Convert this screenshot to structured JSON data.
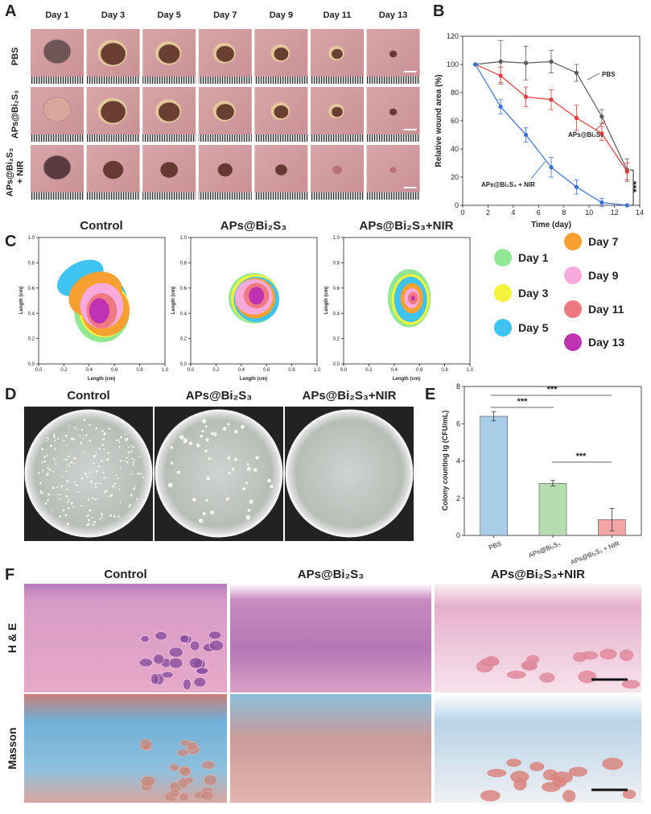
{
  "panel_labels": [
    "A",
    "B",
    "C",
    "D",
    "E",
    "F"
  ],
  "panel_a": {
    "days": [
      "Day 1",
      "Day 3",
      "Day 5",
      "Day 7",
      "Day 9",
      "Day 11",
      "Day 13"
    ],
    "rows": [
      [
        "PBS"
      ],
      [
        "APs@Bi₂S₃"
      ],
      [
        "APs@Bi₂S₃",
        "+ NIR"
      ]
    ]
  },
  "chart_data": [
    {
      "type": "line",
      "x": [
        1,
        3,
        5,
        7,
        9,
        11,
        13
      ],
      "xlabel": "Time (day)",
      "ylabel": "Relative wound area (%)",
      "xlim": [
        0,
        14
      ],
      "xticks": [
        0,
        2,
        4,
        6,
        8,
        10,
        12,
        14
      ],
      "ylim": [
        0,
        120
      ],
      "yticks": [
        0,
        20,
        40,
        60,
        80,
        100,
        120
      ],
      "series": [
        {
          "name": "PBS",
          "color": "#5a5a5a",
          "values": [
            100,
            102,
            101,
            102,
            94,
            63,
            25
          ],
          "errors": [
            0,
            15,
            12,
            8,
            6,
            5,
            8
          ]
        },
        {
          "name": "APs@Bi₂S₃",
          "color": "#e23c3c",
          "values": [
            100,
            92,
            77,
            75,
            62,
            51,
            24
          ],
          "errors": [
            0,
            6,
            7,
            7,
            9,
            5,
            6
          ]
        },
        {
          "name": "APs@Bi₂S₃ + NIR",
          "color": "#3b6fd6",
          "values": [
            100,
            70,
            50,
            27,
            13,
            2,
            0
          ],
          "errors": [
            0,
            5,
            5,
            7,
            5,
            3,
            0
          ]
        }
      ],
      "annotations": [
        "***"
      ]
    },
    {
      "type": "bar",
      "categories": [
        "PBS",
        "APs@Bi₂S₃",
        "APs@Bi₂S₃ + NIR"
      ],
      "values": [
        6.4,
        2.8,
        0.85
      ],
      "errors": [
        0.25,
        0.15,
        0.6
      ],
      "colors": [
        "#a9cde6",
        "#b5ddb0",
        "#f4a5a5"
      ],
      "ylabel": "Colony counting lg (CFU/mL)",
      "ylim": [
        0,
        8
      ],
      "yticks": [
        0,
        2,
        4,
        6,
        8
      ],
      "annotations": [
        "***",
        "***",
        "***"
      ]
    }
  ],
  "panel_c": {
    "plots": [
      {
        "title": "Control"
      },
      {
        "title": "APs@Bi₂S₃"
      },
      {
        "title": "APs@Bi₂S₃+NIR"
      }
    ],
    "xlabel": "Length (cm)",
    "ylabel": "Length (cm)",
    "xlim": [
      0,
      1
    ],
    "ylim": [
      0,
      1
    ],
    "xticks": [
      {
        "value": 0,
        "label": "0.0"
      },
      {
        "value": 0.2,
        "label": "0.2"
      },
      {
        "value": 0.4,
        "label": "0.4"
      },
      {
        "value": 0.6,
        "label": "0.6"
      },
      {
        "value": 0.8,
        "label": "0.8"
      },
      {
        "value": 1,
        "label": "1.0"
      }
    ],
    "yticks": [
      {
        "value": 0,
        "label": "0.0"
      },
      {
        "value": 0.2,
        "label": "0.2"
      },
      {
        "value": 0.4,
        "label": "0.4"
      },
      {
        "value": 0.6,
        "label": "0.6"
      },
      {
        "value": 0.8,
        "label": "0.8"
      },
      {
        "value": 1,
        "label": "1.0"
      }
    ],
    "legend": [
      {
        "name": "Day 1",
        "color": "#92e892"
      },
      {
        "name": "Day 3",
        "color": "#f3f23c"
      },
      {
        "name": "Day 5",
        "color": "#3fc3f0"
      },
      {
        "name": "Day  7",
        "color": "#f7a032"
      },
      {
        "name": "Day  9",
        "color": "#f7aadb"
      },
      {
        "name": "Day 11",
        "color": "#f07882"
      },
      {
        "name": "Day 13",
        "color": "#c032b2"
      }
    ]
  },
  "panel_d": {
    "titles": [
      "Control",
      "APs@Bi₂S₃",
      "APs@Bi₂S₃+NIR"
    ]
  },
  "panel_f": {
    "titles": [
      "Control",
      "APs@Bi₂S₃",
      "APs@Bi₂S₃+NIR"
    ],
    "rows": [
      "H & E",
      "Masson"
    ]
  }
}
